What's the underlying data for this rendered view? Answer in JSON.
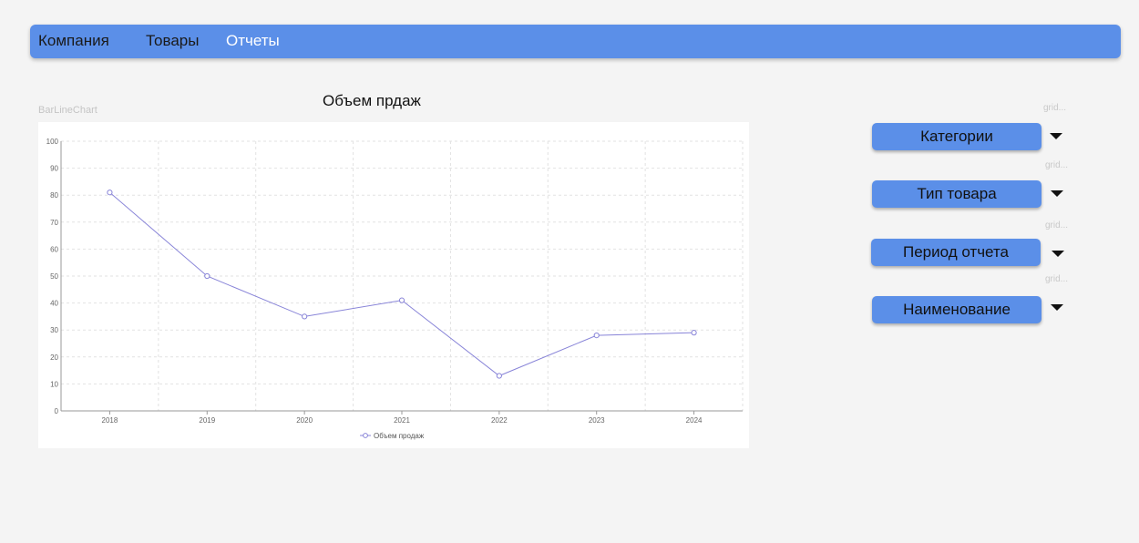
{
  "nav": {
    "items": [
      {
        "label": "Компания"
      },
      {
        "label": "Товары"
      },
      {
        "label": "Отчеты"
      }
    ],
    "active_index": 2
  },
  "chart_section": {
    "title": "Объем прдаж",
    "component_label": "BarLineChart"
  },
  "chart_data": {
    "type": "line",
    "x": [
      "2018",
      "2019",
      "2020",
      "2021",
      "2022",
      "2023",
      "2024"
    ],
    "series": [
      {
        "name": "Объем продаж",
        "values": [
          81,
          50,
          35,
          41,
          13,
          28,
          29
        ],
        "color": "#8884d8"
      }
    ],
    "ylim": [
      0,
      100
    ],
    "yticks": [
      0,
      10,
      20,
      30,
      40,
      50,
      60,
      70,
      80,
      90,
      100
    ],
    "grid": true,
    "legend": "bottom-center"
  },
  "filters": {
    "grid_label": "grid...",
    "buttons": [
      {
        "label": "Категории"
      },
      {
        "label": "Тип товара"
      },
      {
        "label": "Период отчета"
      },
      {
        "label": "Наименование"
      }
    ]
  },
  "colors": {
    "accent": "#5b8fe8",
    "background": "#f4f4f4",
    "series": "#8884d8"
  }
}
